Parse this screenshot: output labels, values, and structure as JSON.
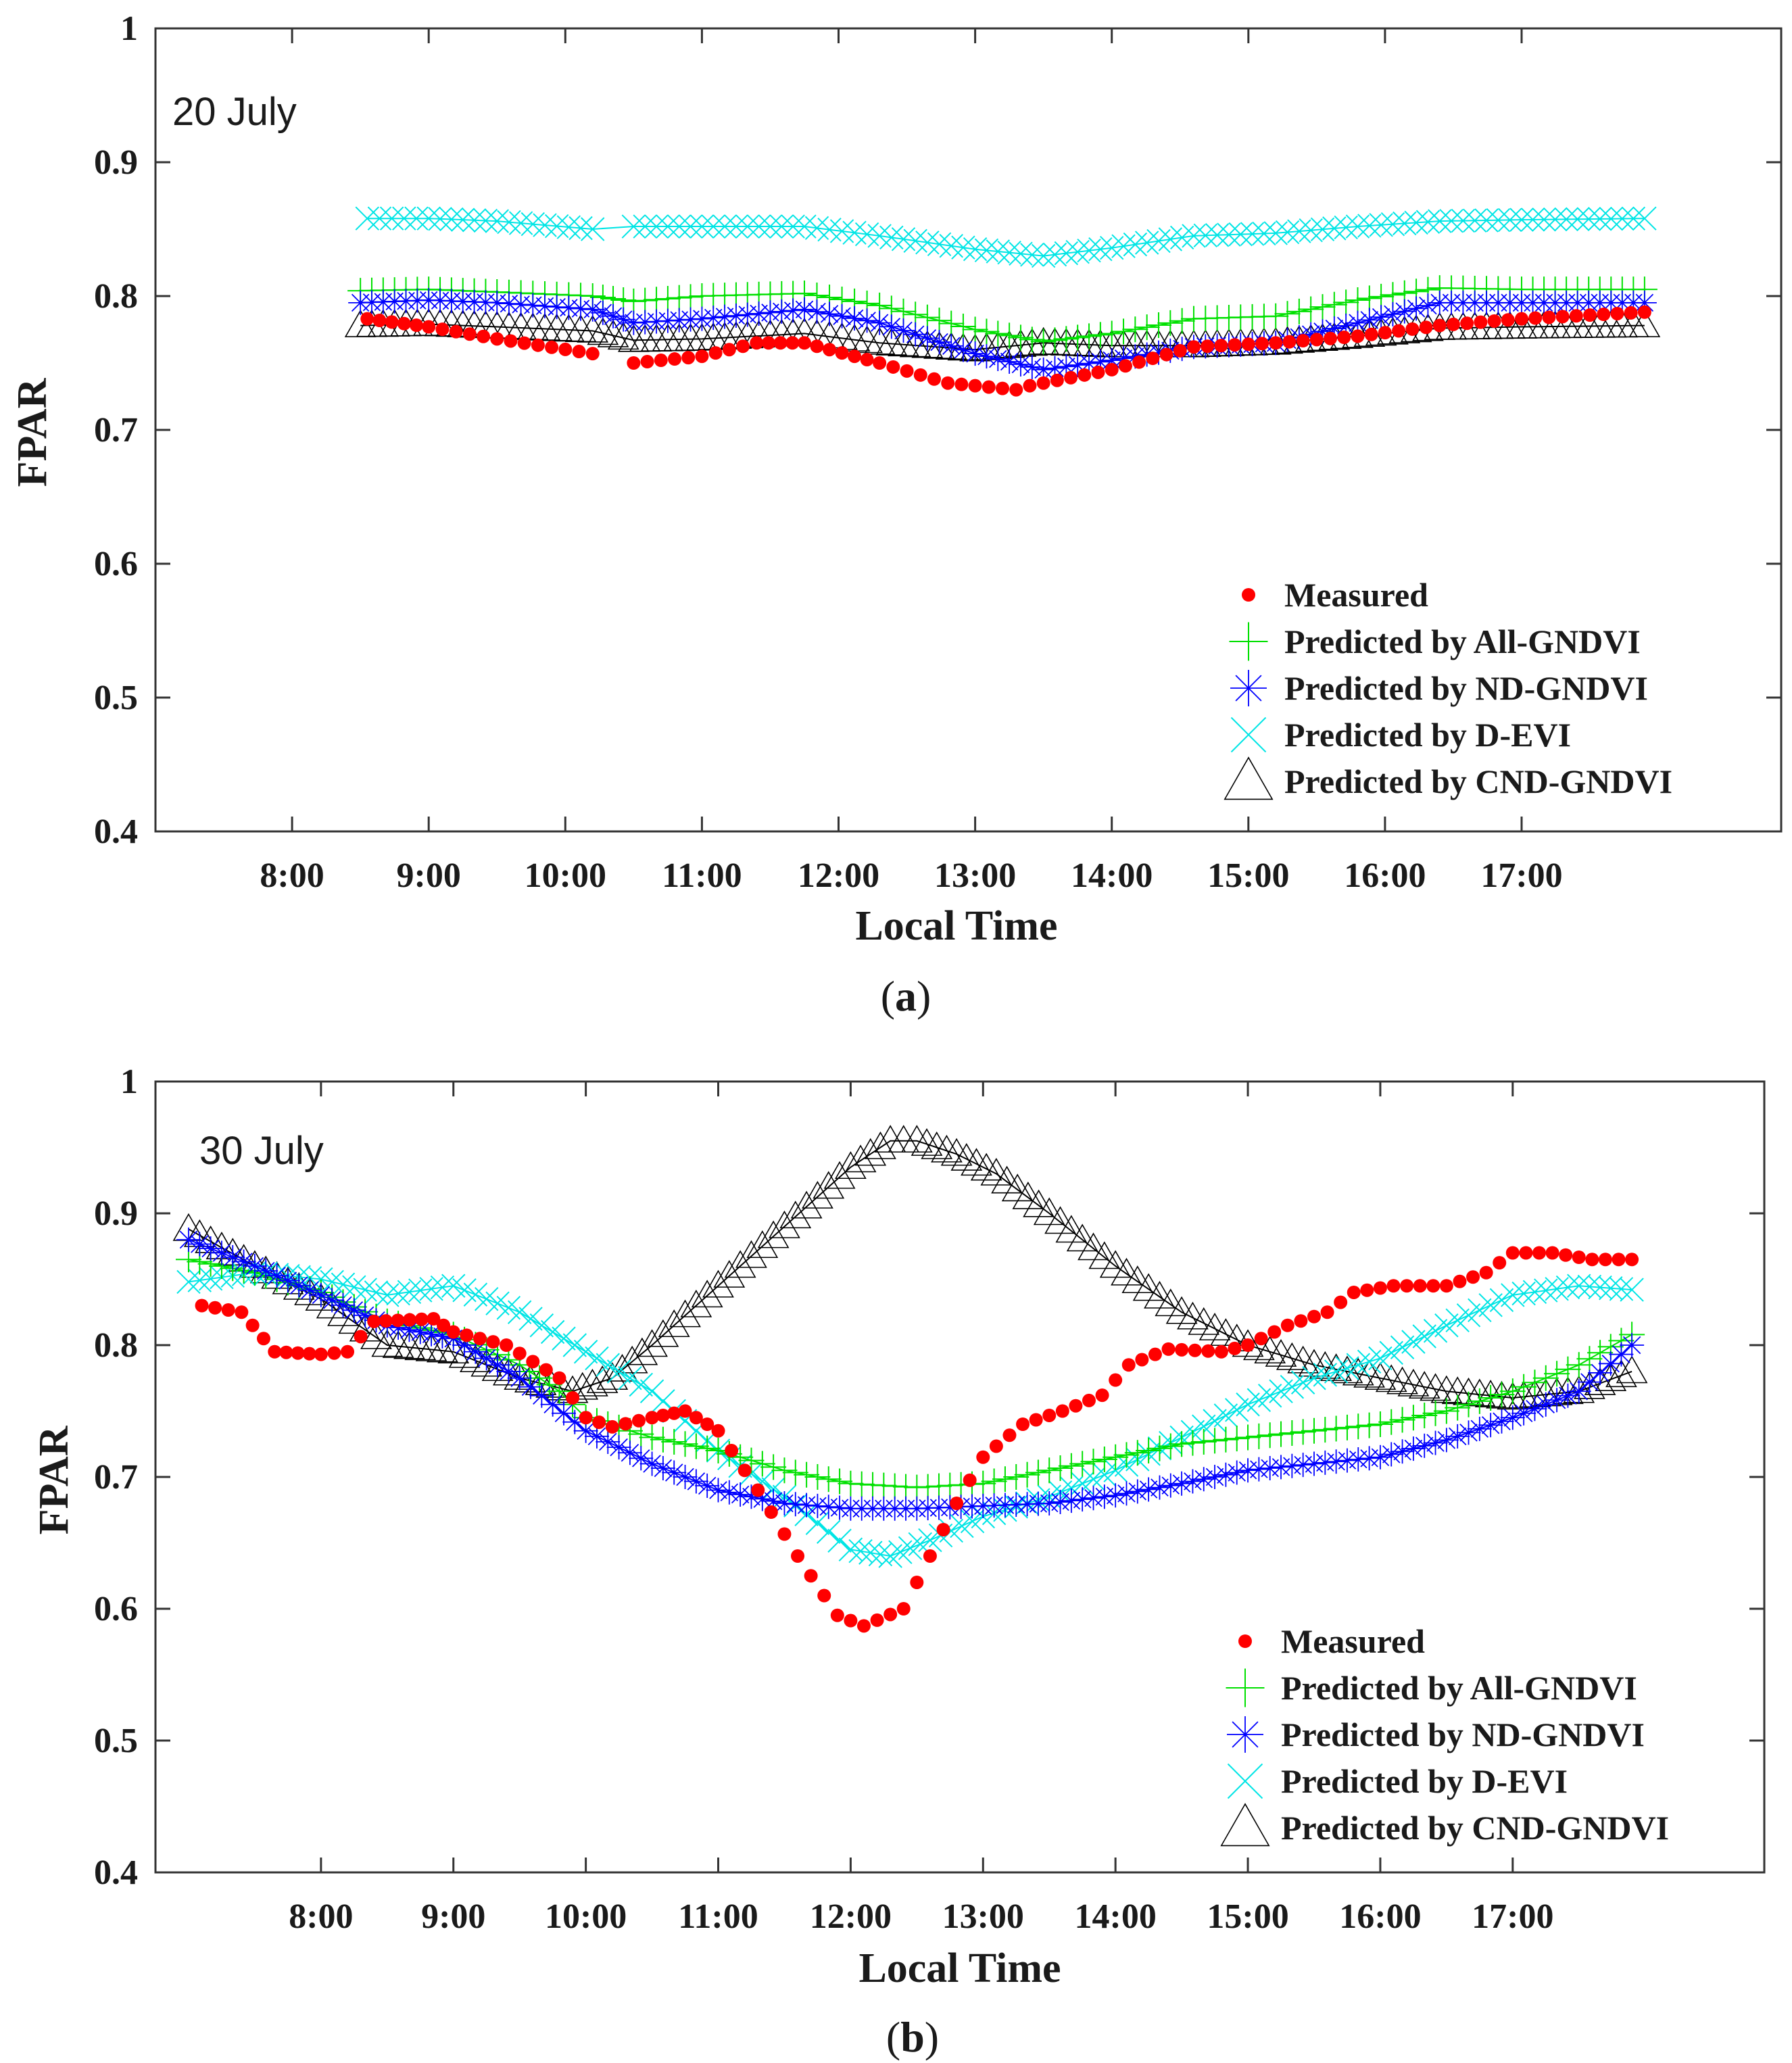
{
  "colors": {
    "measured": "#ff0000",
    "all_gndvi": "#00e000",
    "nd_gndvi": "#0000ff",
    "d_evi": "#00e5e5",
    "cnd_gndvi": "#000000",
    "axis": "#333333"
  },
  "chart_data": [
    {
      "type": "scatter",
      "panel": "a",
      "caption_paren_open": "(",
      "caption_letter": "a",
      "caption_paren_close": ")",
      "annotation": "20 July",
      "xlabel": "Local Time",
      "ylabel": "FPAR",
      "xlim": [
        7.0,
        18.9
      ],
      "ylim": [
        0.4,
        1.0
      ],
      "yticks": [
        0.4,
        0.5,
        0.6,
        0.7,
        0.8,
        0.9,
        1.0
      ],
      "ytick_labels": [
        "0.4",
        "0.5",
        "0.6",
        "0.7",
        "0.8",
        "0.9",
        "1"
      ],
      "xticks": [
        8,
        9,
        10,
        11,
        12,
        13,
        14,
        15,
        16,
        17
      ],
      "xtick_labels": [
        "8:00",
        "9:00",
        "10:00",
        "11:00",
        "12:00",
        "13:00",
        "14:00",
        "15:00",
        "16:00",
        "17:00"
      ],
      "legend": [
        "Measured",
        "Predicted by All-GNDVI",
        "Predicted by ND-GNDVI",
        "Predicted by D-EVI",
        "Predicted by CND-GNDVI"
      ],
      "legend_position": "bottom-right",
      "series": [
        {
          "name": "Measured",
          "marker": "dot",
          "gaps": [
            [
              10.2,
              10.5
            ],
            [
              13.3,
              13.4
            ]
          ],
          "points": [
            [
              8.55,
              0.783
            ],
            [
              9.0,
              0.777
            ],
            [
              9.5,
              0.768
            ],
            [
              10.2,
              0.757
            ],
            [
              10.5,
              0.75
            ],
            [
              11.0,
              0.755
            ],
            [
              11.4,
              0.765
            ],
            [
              11.75,
              0.765
            ],
            [
              12.3,
              0.75
            ],
            [
              12.8,
              0.735
            ],
            [
              13.3,
              0.73
            ],
            [
              13.4,
              0.733
            ],
            [
              14.0,
              0.745
            ],
            [
              14.6,
              0.762
            ],
            [
              15.2,
              0.765
            ],
            [
              15.8,
              0.77
            ],
            [
              16.4,
              0.778
            ],
            [
              17.0,
              0.783
            ],
            [
              17.9,
              0.788
            ]
          ]
        },
        {
          "name": "Predicted by All-GNDVI",
          "marker": "plus",
          "points": [
            [
              8.5,
              0.804
            ],
            [
              9.0,
              0.805
            ],
            [
              9.5,
              0.803
            ],
            [
              10.2,
              0.8
            ],
            [
              10.5,
              0.796
            ],
            [
              11.0,
              0.8
            ],
            [
              11.75,
              0.802
            ],
            [
              12.3,
              0.793
            ],
            [
              13.0,
              0.775
            ],
            [
              13.5,
              0.766
            ],
            [
              14.0,
              0.772
            ],
            [
              14.6,
              0.783
            ],
            [
              15.2,
              0.785
            ],
            [
              15.8,
              0.797
            ],
            [
              16.4,
              0.806
            ],
            [
              17.0,
              0.805
            ],
            [
              17.9,
              0.805
            ]
          ]
        },
        {
          "name": "Predicted by ND-GNDVI",
          "marker": "asterisk",
          "points": [
            [
              8.5,
              0.795
            ],
            [
              9.0,
              0.797
            ],
            [
              9.5,
              0.795
            ],
            [
              10.2,
              0.79
            ],
            [
              10.5,
              0.78
            ],
            [
              11.0,
              0.783
            ],
            [
              11.75,
              0.79
            ],
            [
              12.3,
              0.78
            ],
            [
              13.0,
              0.757
            ],
            [
              13.5,
              0.745
            ],
            [
              14.0,
              0.752
            ],
            [
              14.6,
              0.762
            ],
            [
              15.2,
              0.765
            ],
            [
              15.8,
              0.78
            ],
            [
              16.4,
              0.795
            ],
            [
              17.0,
              0.795
            ],
            [
              17.9,
              0.795
            ]
          ]
        },
        {
          "name": "Predicted by D-EVI",
          "marker": "x",
          "gaps": [
            [
              10.2,
              10.5
            ]
          ],
          "points": [
            [
              8.55,
              0.858
            ],
            [
              9.0,
              0.858
            ],
            [
              9.5,
              0.856
            ],
            [
              10.2,
              0.85
            ],
            [
              10.5,
              0.852
            ],
            [
              11.0,
              0.852
            ],
            [
              11.75,
              0.852
            ],
            [
              12.3,
              0.845
            ],
            [
              13.0,
              0.835
            ],
            [
              13.5,
              0.83
            ],
            [
              14.0,
              0.836
            ],
            [
              14.6,
              0.845
            ],
            [
              15.2,
              0.847
            ],
            [
              15.8,
              0.852
            ],
            [
              16.4,
              0.856
            ],
            [
              17.0,
              0.857
            ],
            [
              17.9,
              0.858
            ]
          ]
        },
        {
          "name": "Predicted by CND-GNDVI",
          "marker": "triangle",
          "points": [
            [
              8.5,
              0.778
            ],
            [
              9.0,
              0.779
            ],
            [
              9.5,
              0.777
            ],
            [
              10.2,
              0.774
            ],
            [
              10.5,
              0.767
            ],
            [
              11.0,
              0.768
            ],
            [
              11.75,
              0.772
            ],
            [
              12.3,
              0.765
            ],
            [
              13.0,
              0.76
            ],
            [
              13.5,
              0.765
            ],
            [
              14.0,
              0.763
            ],
            [
              14.6,
              0.763
            ],
            [
              15.2,
              0.765
            ],
            [
              15.8,
              0.77
            ],
            [
              16.4,
              0.776
            ],
            [
              17.0,
              0.777
            ],
            [
              17.9,
              0.778
            ]
          ]
        }
      ]
    },
    {
      "type": "scatter",
      "panel": "b",
      "caption_paren_open": "(",
      "caption_letter": "b",
      "caption_paren_close": ")",
      "annotation": "30 July",
      "xlabel": "Local Time",
      "ylabel": "FPAR",
      "xlim": [
        6.75,
        18.9
      ],
      "ylim": [
        0.4,
        1.0
      ],
      "yticks": [
        0.4,
        0.5,
        0.6,
        0.7,
        0.8,
        0.9,
        1.0
      ],
      "ytick_labels": [
        "0.4",
        "0.5",
        "0.6",
        "0.7",
        "0.8",
        "0.9",
        "1"
      ],
      "xticks": [
        8,
        9,
        10,
        11,
        12,
        13,
        14,
        15,
        16,
        17
      ],
      "xtick_labels": [
        "8:00",
        "9:00",
        "10:00",
        "11:00",
        "12:00",
        "13:00",
        "14:00",
        "15:00",
        "16:00",
        "17:00"
      ],
      "legend": [
        "Measured",
        "Predicted by All-GNDVI",
        "Predicted by ND-GNDVI",
        "Predicted by D-EVI",
        "Predicted by CND-GNDVI"
      ],
      "legend_position": "bottom-right",
      "series": [
        {
          "name": "Measured",
          "marker": "dot",
          "points": [
            [
              7.1,
              0.83
            ],
            [
              7.4,
              0.825
            ],
            [
              7.65,
              0.795
            ],
            [
              8.0,
              0.793
            ],
            [
              8.2,
              0.795
            ],
            [
              8.4,
              0.818
            ],
            [
              8.85,
              0.82
            ],
            [
              9.0,
              0.81
            ],
            [
              9.4,
              0.8
            ],
            [
              9.8,
              0.775
            ],
            [
              10.0,
              0.745
            ],
            [
              10.2,
              0.738
            ],
            [
              10.5,
              0.745
            ],
            [
              10.75,
              0.75
            ],
            [
              11.0,
              0.735
            ],
            [
              11.3,
              0.69
            ],
            [
              11.6,
              0.64
            ],
            [
              11.9,
              0.595
            ],
            [
              12.1,
              0.587
            ],
            [
              12.4,
              0.6
            ],
            [
              12.6,
              0.64
            ],
            [
              12.8,
              0.68
            ],
            [
              13.0,
              0.715
            ],
            [
              13.3,
              0.74
            ],
            [
              13.6,
              0.75
            ],
            [
              13.9,
              0.762
            ],
            [
              14.1,
              0.785
            ],
            [
              14.4,
              0.797
            ],
            [
              14.8,
              0.795
            ],
            [
              15.0,
              0.8
            ],
            [
              15.3,
              0.815
            ],
            [
              15.6,
              0.825
            ],
            [
              15.8,
              0.84
            ],
            [
              16.1,
              0.845
            ],
            [
              16.5,
              0.845
            ],
            [
              16.8,
              0.855
            ],
            [
              17.0,
              0.87
            ],
            [
              17.3,
              0.87
            ],
            [
              17.6,
              0.865
            ],
            [
              17.9,
              0.865
            ]
          ]
        },
        {
          "name": "Predicted by All-GNDVI",
          "marker": "plus",
          "points": [
            [
              7.0,
              0.865
            ],
            [
              7.5,
              0.855
            ],
            [
              8.0,
              0.84
            ],
            [
              8.5,
              0.818
            ],
            [
              9.0,
              0.808
            ],
            [
              9.5,
              0.785
            ],
            [
              9.8,
              0.765
            ],
            [
              10.0,
              0.745
            ],
            [
              10.5,
              0.73
            ],
            [
              11.0,
              0.72
            ],
            [
              11.5,
              0.705
            ],
            [
              12.0,
              0.695
            ],
            [
              12.5,
              0.692
            ],
            [
              13.0,
              0.695
            ],
            [
              13.5,
              0.705
            ],
            [
              14.0,
              0.715
            ],
            [
              14.5,
              0.725
            ],
            [
              15.0,
              0.73
            ],
            [
              15.5,
              0.735
            ],
            [
              16.0,
              0.74
            ],
            [
              16.5,
              0.75
            ],
            [
              17.0,
              0.765
            ],
            [
              17.5,
              0.785
            ],
            [
              17.9,
              0.808
            ]
          ]
        },
        {
          "name": "Predicted by ND-GNDVI",
          "marker": "asterisk",
          "points": [
            [
              7.0,
              0.88
            ],
            [
              7.5,
              0.86
            ],
            [
              8.0,
              0.838
            ],
            [
              8.5,
              0.815
            ],
            [
              9.0,
              0.805
            ],
            [
              9.5,
              0.775
            ],
            [
              10.0,
              0.735
            ],
            [
              10.5,
              0.71
            ],
            [
              11.0,
              0.69
            ],
            [
              11.5,
              0.68
            ],
            [
              12.0,
              0.676
            ],
            [
              12.5,
              0.676
            ],
            [
              13.0,
              0.678
            ],
            [
              13.5,
              0.68
            ],
            [
              14.0,
              0.686
            ],
            [
              14.5,
              0.695
            ],
            [
              15.0,
              0.705
            ],
            [
              15.5,
              0.71
            ],
            [
              16.0,
              0.715
            ],
            [
              16.5,
              0.728
            ],
            [
              17.0,
              0.745
            ],
            [
              17.5,
              0.765
            ],
            [
              17.9,
              0.8
            ]
          ]
        },
        {
          "name": "Predicted by D-EVI",
          "marker": "x",
          "points": [
            [
              7.0,
              0.848
            ],
            [
              7.5,
              0.855
            ],
            [
              8.0,
              0.85
            ],
            [
              8.5,
              0.838
            ],
            [
              9.0,
              0.845
            ],
            [
              9.5,
              0.825
            ],
            [
              10.0,
              0.795
            ],
            [
              10.5,
              0.765
            ],
            [
              11.0,
              0.72
            ],
            [
              11.5,
              0.685
            ],
            [
              12.0,
              0.645
            ],
            [
              12.3,
              0.64
            ],
            [
              12.6,
              0.652
            ],
            [
              13.0,
              0.67
            ],
            [
              13.5,
              0.685
            ],
            [
              14.0,
              0.705
            ],
            [
              14.5,
              0.73
            ],
            [
              15.0,
              0.755
            ],
            [
              15.5,
              0.775
            ],
            [
              16.0,
              0.79
            ],
            [
              16.5,
              0.815
            ],
            [
              17.0,
              0.838
            ],
            [
              17.5,
              0.845
            ],
            [
              17.9,
              0.842
            ]
          ]
        },
        {
          "name": "Predicted by CND-GNDVI",
          "marker": "triangle",
          "points": [
            [
              7.0,
              0.888
            ],
            [
              7.5,
              0.86
            ],
            [
              8.0,
              0.835
            ],
            [
              8.5,
              0.8
            ],
            [
              9.0,
              0.795
            ],
            [
              9.5,
              0.775
            ],
            [
              9.9,
              0.765
            ],
            [
              10.2,
              0.775
            ],
            [
              10.5,
              0.8
            ],
            [
              11.0,
              0.845
            ],
            [
              11.5,
              0.89
            ],
            [
              12.0,
              0.935
            ],
            [
              12.3,
              0.955
            ],
            [
              12.5,
              0.955
            ],
            [
              12.8,
              0.945
            ],
            [
              13.1,
              0.93
            ],
            [
              13.5,
              0.9
            ],
            [
              14.0,
              0.86
            ],
            [
              14.5,
              0.825
            ],
            [
              15.0,
              0.8
            ],
            [
              15.5,
              0.785
            ],
            [
              16.0,
              0.775
            ],
            [
              16.5,
              0.765
            ],
            [
              17.0,
              0.76
            ],
            [
              17.5,
              0.765
            ],
            [
              17.9,
              0.78
            ]
          ]
        }
      ]
    }
  ]
}
